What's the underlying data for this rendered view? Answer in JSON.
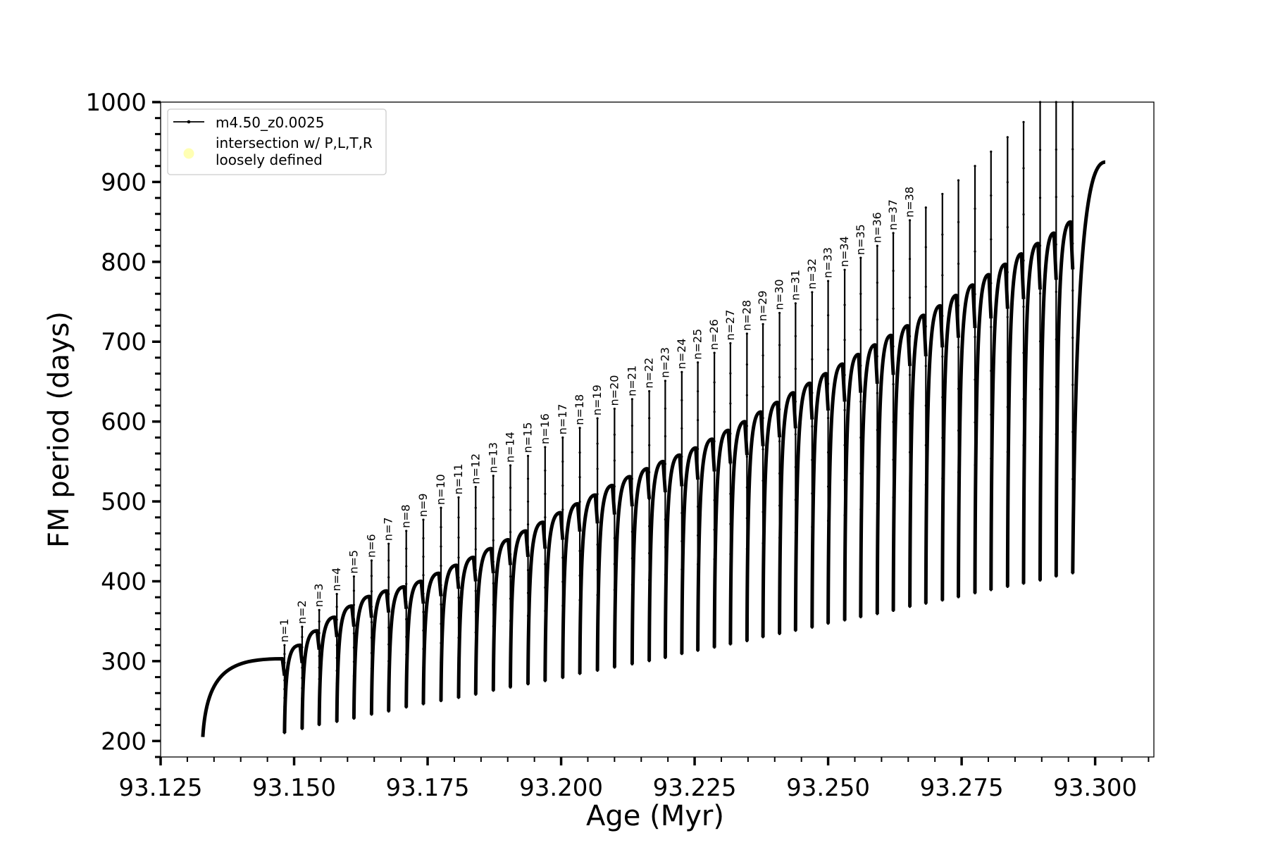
{
  "chart_data": {
    "type": "line",
    "title": "",
    "xlabel": "Age (Myr)",
    "ylabel": "FM period (days)",
    "xlim": [
      93.125,
      93.311
    ],
    "ylim": [
      180,
      1000
    ],
    "x_ticks": [
      "93.125",
      "93.150",
      "93.175",
      "93.200",
      "93.225",
      "93.250",
      "93.275",
      "93.300"
    ],
    "y_ticks": [
      "200",
      "300",
      "400",
      "500",
      "600",
      "700",
      "800",
      "900",
      "1000"
    ],
    "grid": false,
    "legend_position": "top-left",
    "legend": [
      {
        "label": "m4.50_z0.0025",
        "marker": "line-with-dots",
        "color": "#000000"
      },
      {
        "label": "intersection w/ P,L,T,R\nloosely defined",
        "marker": "circle",
        "color": "#ffff99"
      }
    ],
    "series": [
      {
        "name": "m4.50_z0.0025",
        "color": "#000000",
        "start_age": 93.1329,
        "start_period": 205,
        "end_age": 93.3019,
        "end_period": 925,
        "pulses": [
          {
            "label": "n=1",
            "age": 93.1482,
            "peak": 303,
            "spike": 320,
            "min": 210
          },
          {
            "label": "n=2",
            "age": 93.1515,
            "peak": 320,
            "spike": 343,
            "min": 215
          },
          {
            "label": "n=3",
            "age": 93.1547,
            "peak": 338,
            "spike": 364,
            "min": 220
          },
          {
            "label": "n=4",
            "age": 93.158,
            "peak": 355,
            "spike": 384,
            "min": 224
          },
          {
            "label": "n=5",
            "age": 93.1612,
            "peak": 369,
            "spike": 406,
            "min": 228
          },
          {
            "label": "n=6",
            "age": 93.1645,
            "peak": 381,
            "spike": 426,
            "min": 233
          },
          {
            "label": "n=7",
            "age": 93.1677,
            "peak": 388,
            "spike": 447,
            "min": 237
          },
          {
            "label": "n=8",
            "age": 93.171,
            "peak": 393,
            "spike": 463,
            "min": 242
          },
          {
            "label": "n=9",
            "age": 93.1742,
            "peak": 400,
            "spike": 477,
            "min": 246
          },
          {
            "label": "n=10",
            "age": 93.1775,
            "peak": 410,
            "spike": 492,
            "min": 250
          },
          {
            "label": "n=11",
            "age": 93.1808,
            "peak": 420,
            "spike": 505,
            "min": 254
          },
          {
            "label": "n=12",
            "age": 93.184,
            "peak": 430,
            "spike": 518,
            "min": 258
          },
          {
            "label": "n=13",
            "age": 93.1873,
            "peak": 441,
            "spike": 532,
            "min": 263
          },
          {
            "label": "n=14",
            "age": 93.1905,
            "peak": 452,
            "spike": 545,
            "min": 267
          },
          {
            "label": "n=15",
            "age": 93.1938,
            "peak": 463,
            "spike": 557,
            "min": 271
          },
          {
            "label": "n=16",
            "age": 93.197,
            "peak": 474,
            "spike": 568,
            "min": 275
          },
          {
            "label": "n=17",
            "age": 93.2003,
            "peak": 486,
            "spike": 580,
            "min": 279
          },
          {
            "label": "n=18",
            "age": 93.2035,
            "peak": 497,
            "spike": 592,
            "min": 284
          },
          {
            "label": "n=19",
            "age": 93.2068,
            "peak": 508,
            "spike": 604,
            "min": 288
          },
          {
            "label": "n=20",
            "age": 93.21,
            "peak": 520,
            "spike": 616,
            "min": 292
          },
          {
            "label": "n=21",
            "age": 93.2133,
            "peak": 531,
            "spike": 628,
            "min": 296
          },
          {
            "label": "n=22",
            "age": 93.2165,
            "peak": 541,
            "spike": 638,
            "min": 300
          },
          {
            "label": "n=23",
            "age": 93.2195,
            "peak": 550,
            "spike": 651,
            "min": 304
          },
          {
            "label": "n=24",
            "age": 93.2226,
            "peak": 558,
            "spike": 662,
            "min": 309
          },
          {
            "label": "n=25",
            "age": 93.2256,
            "peak": 567,
            "spike": 674,
            "min": 313
          },
          {
            "label": "n=26",
            "age": 93.2287,
            "peak": 578,
            "spike": 686,
            "min": 317
          },
          {
            "label": "n=27",
            "age": 93.2317,
            "peak": 589,
            "spike": 698,
            "min": 321
          },
          {
            "label": "n=28",
            "age": 93.2348,
            "peak": 600,
            "spike": 710,
            "min": 325
          },
          {
            "label": "n=29",
            "age": 93.2378,
            "peak": 612,
            "spike": 722,
            "min": 330
          },
          {
            "label": "n=30",
            "age": 93.2409,
            "peak": 624,
            "spike": 736,
            "min": 334
          },
          {
            "label": "n=31",
            "age": 93.2439,
            "peak": 636,
            "spike": 748,
            "min": 338
          },
          {
            "label": "n=32",
            "age": 93.247,
            "peak": 648,
            "spike": 762,
            "min": 342
          },
          {
            "label": "n=33",
            "age": 93.25,
            "peak": 660,
            "spike": 776,
            "min": 347
          },
          {
            "label": "n=34",
            "age": 93.2531,
            "peak": 672,
            "spike": 790,
            "min": 351
          },
          {
            "label": "n=35",
            "age": 93.2561,
            "peak": 684,
            "spike": 805,
            "min": 355
          },
          {
            "label": "n=36",
            "age": 93.2592,
            "peak": 696,
            "spike": 820,
            "min": 359
          },
          {
            "label": "n=37",
            "age": 93.2622,
            "peak": 708,
            "spike": 836,
            "min": 363
          },
          {
            "label": "n=38",
            "age": 93.2653,
            "peak": 720,
            "spike": 852,
            "min": 368
          },
          {
            "label": "",
            "age": 93.2683,
            "peak": 733,
            "spike": 868,
            "min": 372
          },
          {
            "label": "",
            "age": 93.2714,
            "peak": 745,
            "spike": 885,
            "min": 376
          },
          {
            "label": "",
            "age": 93.2744,
            "peak": 758,
            "spike": 902,
            "min": 380
          },
          {
            "label": "",
            "age": 93.2775,
            "peak": 771,
            "spike": 920,
            "min": 385
          },
          {
            "label": "",
            "age": 93.2805,
            "peak": 784,
            "spike": 938,
            "min": 389
          },
          {
            "label": "",
            "age": 93.2836,
            "peak": 797,
            "spike": 956,
            "min": 393
          },
          {
            "label": "",
            "age": 93.2866,
            "peak": 810,
            "spike": 975,
            "min": 397
          },
          {
            "label": "",
            "age": 93.2897,
            "peak": 823,
            "spike": 1000,
            "min": 401
          },
          {
            "label": "",
            "age": 93.2927,
            "peak": 836,
            "spike": 1000,
            "min": 406
          },
          {
            "label": "",
            "age": 93.2958,
            "peak": 850,
            "spike": 1000,
            "min": 410
          }
        ]
      }
    ]
  }
}
